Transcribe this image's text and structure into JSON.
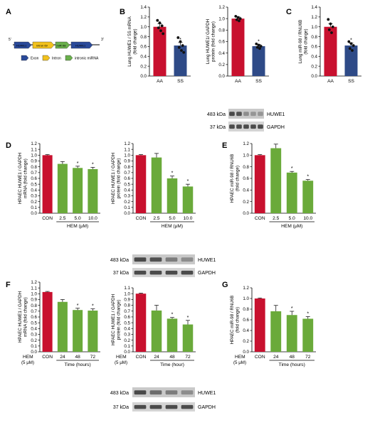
{
  "colors": {
    "red": "#c8102e",
    "blue": "#2e4a87",
    "green": "#6aaa3a",
    "gene_blue": "#2a4a9a",
    "gene_yellow": "#f2c21d",
    "gene_green": "#6ab04c",
    "blot_bg": "#c9c9c9",
    "blot_band": "#222222"
  },
  "panel_a": {
    "label": "A",
    "five_prime": "5'",
    "three_prime": "3'",
    "segments": [
      {
        "text": "HUWE1",
        "kind": "exon"
      },
      {
        "text": "intron 69",
        "kind": "intron"
      },
      {
        "text": "miR-98",
        "kind": "mirna"
      },
      {
        "text": "HUWE1",
        "kind": "exon"
      }
    ],
    "legend": [
      {
        "text": "Exon",
        "kind": "exon"
      },
      {
        "text": "Intron",
        "kind": "intron"
      },
      {
        "text": "intronic miRNA",
        "kind": "mirna"
      }
    ]
  },
  "blots": {
    "b": {
      "rows": [
        {
          "kda": "483 kDa",
          "protein": "HUWE1"
        },
        {
          "kda": "37 kDa",
          "protein": "GAPDH"
        }
      ]
    },
    "d": {
      "rows": [
        {
          "kda": "483 kDa",
          "protein": "HUWE1"
        },
        {
          "kda": "37 kDa",
          "protein": "GAPDH"
        }
      ]
    },
    "f": {
      "rows": [
        {
          "kda": "483 kDa",
          "protein": "HUWE1"
        },
        {
          "kda": "37 kDa",
          "protein": "GAPDH"
        }
      ]
    }
  },
  "chart_data": [
    {
      "id": "B1",
      "panel_label": "B",
      "type": "bar",
      "ylabel": [
        "Lung HUWE1 / 5S mRNA",
        "(fold change)"
      ],
      "ylim": [
        0,
        1.4
      ],
      "yticks": [
        0.0,
        0.2,
        0.4,
        0.6,
        0.8,
        1.0,
        1.2,
        1.4
      ],
      "categories": [
        "AA",
        "SS"
      ],
      "values": [
        1.0,
        0.62
      ],
      "errors": [
        0.06,
        0.06
      ],
      "bar_colors": [
        "red",
        "blue"
      ],
      "significance": [
        "",
        "*"
      ],
      "points": [
        [
          1.13,
          1.08,
          1.02,
          0.98,
          0.92,
          0.86
        ],
        [
          0.78,
          0.7,
          0.62,
          0.58,
          0.52,
          0.48
        ]
      ],
      "xlabel": "",
      "prefix": []
    },
    {
      "id": "B2",
      "type": "bar",
      "ylabel": [
        "Lung HUWE1/ GAPDH",
        "protein (fold change)"
      ],
      "ylim": [
        0,
        1.2
      ],
      "yticks": [
        0.0,
        0.2,
        0.4,
        0.6,
        0.8,
        1.0,
        1.2
      ],
      "categories": [
        "AA",
        "SS"
      ],
      "values": [
        1.0,
        0.52
      ],
      "errors": [
        0.03,
        0.03
      ],
      "bar_colors": [
        "red",
        "blue"
      ],
      "significance": [
        "",
        "*"
      ],
      "points": [
        [
          1.04,
          1.02,
          1.0,
          0.98,
          0.96
        ],
        [
          0.56,
          0.54,
          0.52,
          0.5,
          0.48
        ]
      ],
      "xlabel": "",
      "prefix": []
    },
    {
      "id": "C",
      "panel_label": "C",
      "type": "bar",
      "ylabel": [
        "Lung miR-98 / RNU6B",
        "(fold change)"
      ],
      "ylim": [
        0,
        1.4
      ],
      "yticks": [
        0.0,
        0.2,
        0.4,
        0.6,
        0.8,
        1.0,
        1.2,
        1.4
      ],
      "categories": [
        "AA",
        "SS"
      ],
      "values": [
        1.0,
        0.62
      ],
      "errors": [
        0.06,
        0.05
      ],
      "bar_colors": [
        "red",
        "blue"
      ],
      "significance": [
        "",
        "*"
      ],
      "points": [
        [
          1.15,
          1.06,
          1.0,
          0.94,
          0.88
        ],
        [
          0.7,
          0.66,
          0.62,
          0.56,
          0.52
        ]
      ],
      "xlabel": "",
      "prefix": []
    },
    {
      "id": "D1",
      "panel_label": "D",
      "type": "bar",
      "ylabel": [
        "HPAEC HUWE1 / GAPDH",
        "mRNA (fold change)"
      ],
      "ylim": [
        0,
        1.2
      ],
      "yticks": [
        0.0,
        0.1,
        0.2,
        0.3,
        0.4,
        0.5,
        0.6,
        0.7,
        0.8,
        0.9,
        1.0,
        1.1,
        1.2
      ],
      "categories": [
        "CON",
        "2.5",
        "5.0",
        "10.0"
      ],
      "values": [
        1.0,
        0.85,
        0.78,
        0.76
      ],
      "errors": [
        0.01,
        0.04,
        0.03,
        0.03
      ],
      "bar_colors": [
        "red",
        "green",
        "green",
        "green"
      ],
      "significance": [
        "",
        "",
        "*",
        "*"
      ],
      "points": [],
      "xlabel": "HEM (μM)",
      "prefix": []
    },
    {
      "id": "D2",
      "type": "bar",
      "ylabel": [
        "HPAEC HUWE1 / GAPDH",
        "protein (fold change)"
      ],
      "ylim": [
        0,
        1.2
      ],
      "yticks": [
        0.0,
        0.1,
        0.2,
        0.3,
        0.4,
        0.5,
        0.6,
        0.7,
        0.8,
        0.9,
        1.0,
        1.1,
        1.2
      ],
      "categories": [
        "CON",
        "2.5",
        "5.0",
        "10.0"
      ],
      "values": [
        1.0,
        0.96,
        0.6,
        0.46
      ],
      "errors": [
        0.01,
        0.07,
        0.04,
        0.04
      ],
      "bar_colors": [
        "red",
        "green",
        "green",
        "green"
      ],
      "significance": [
        "",
        "",
        "*",
        "*"
      ],
      "points": [],
      "xlabel": "HEM (μM)",
      "prefix": []
    },
    {
      "id": "E",
      "panel_label": "E",
      "type": "bar",
      "ylabel": [
        "HPAEC miR-98 / RNU6B",
        "(fold change)"
      ],
      "ylim": [
        0,
        1.2
      ],
      "yticks": [
        0.0,
        0.2,
        0.4,
        0.6,
        0.8,
        1.0,
        1.2
      ],
      "categories": [
        "CON",
        "2.5",
        "5.0",
        "10.0"
      ],
      "values": [
        1.0,
        1.12,
        0.7,
        0.56
      ],
      "errors": [
        0.01,
        0.07,
        0.02,
        0.02
      ],
      "bar_colors": [
        "red",
        "green",
        "green",
        "green"
      ],
      "significance": [
        "",
        "",
        "*",
        "*"
      ],
      "points": [],
      "xlabel": "HEM (μM)",
      "prefix": []
    },
    {
      "id": "F1",
      "panel_label": "F",
      "type": "bar",
      "ylabel": [
        "HPAEC HUWE1 / GAPDH",
        "mRNA (fold change)"
      ],
      "ylim": [
        0,
        1.2
      ],
      "yticks": [
        0.0,
        0.1,
        0.2,
        0.3,
        0.4,
        0.5,
        0.6,
        0.7,
        0.8,
        0.9,
        1.0,
        1.1,
        1.2
      ],
      "categories": [
        "CON",
        "24",
        "48",
        "72"
      ],
      "values": [
        1.03,
        0.86,
        0.72,
        0.71
      ],
      "errors": [
        0.01,
        0.04,
        0.03,
        0.03
      ],
      "bar_colors": [
        "red",
        "green",
        "green",
        "green"
      ],
      "significance": [
        "",
        "",
        "*",
        "*"
      ],
      "points": [],
      "xlabel": "Time (hours)",
      "prefix": [
        "HEM",
        "(5 μM)"
      ]
    },
    {
      "id": "F2",
      "type": "bar",
      "ylabel": [
        "HPAEC HUWE1 / GAPDH",
        "protein (fold change)"
      ],
      "ylim": [
        0,
        1.1
      ],
      "yticks": [
        0.0,
        0.1,
        0.2,
        0.3,
        0.4,
        0.5,
        0.6,
        0.7,
        0.8,
        0.9,
        1.0,
        1.1
      ],
      "categories": [
        "CON",
        "24",
        "48",
        "72"
      ],
      "values": [
        1.0,
        0.71,
        0.57,
        0.47
      ],
      "errors": [
        0.01,
        0.09,
        0.02,
        0.07
      ],
      "bar_colors": [
        "red",
        "green",
        "green",
        "green"
      ],
      "significance": [
        "",
        "",
        "*",
        "*"
      ],
      "points": [],
      "xlabel": "Time (hour)",
      "prefix": [
        "HEM",
        "(5 μM)"
      ]
    },
    {
      "id": "G",
      "panel_label": "G",
      "type": "bar",
      "ylabel": [
        "HPAEC miR-98 / RNU6B",
        "(fold change)"
      ],
      "ylim": [
        0,
        1.2
      ],
      "yticks": [
        0.0,
        0.2,
        0.4,
        0.6,
        0.8,
        1.0,
        1.2
      ],
      "categories": [
        "CON",
        "24",
        "48",
        "72"
      ],
      "values": [
        1.0,
        0.76,
        0.69,
        0.62
      ],
      "errors": [
        0.01,
        0.11,
        0.07,
        0.04
      ],
      "bar_colors": [
        "red",
        "green",
        "green",
        "green"
      ],
      "significance": [
        "",
        "",
        "*",
        "*"
      ],
      "points": [],
      "xlabel": "Time (hours)",
      "prefix": [
        "HEM",
        "(5 μM)"
      ]
    }
  ]
}
